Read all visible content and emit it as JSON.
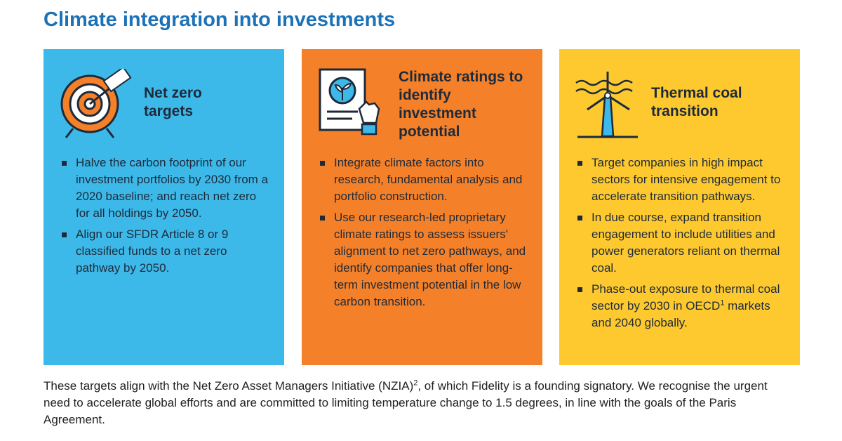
{
  "title": "Climate integration into investments",
  "cards": [
    {
      "title": "Net zero targets",
      "bullets": [
        "Halve the carbon footprint of our investment portfolios by 2030 from a 2020 baseline; and reach net zero for all holdings by 2050.",
        "Align our SFDR Article 8 or 9 classified funds to a net zero pathway by 2050."
      ]
    },
    {
      "title": "Climate ratings to identify investment potential",
      "bullets": [
        "Integrate climate factors into research, fundamental analysis and portfolio construction.",
        "Use our research-led proprietary climate ratings to assess issuers' alignment to net zero pathways, and identify companies that offer long-term investment potential in the low carbon transition."
      ]
    },
    {
      "title": "Thermal coal transition",
      "bullets": [
        "Target companies in high impact sectors for intensive engagement to accelerate transition pathways.",
        "In due course, expand transition engagement to include utilities and power generators reliant on thermal coal.",
        {
          "before": "Phase-out exposure to thermal coal sector by 2030 in OECD",
          "sup": "1",
          "after": " markets and 2040 globally."
        }
      ]
    }
  ],
  "footer": {
    "before": "These targets align with the Net Zero Asset Managers Initiative (NZIA)",
    "sup": "2",
    "after": ", of which Fidelity is a founding signatory. We recognise the urgent need to accelerate global efforts and are committed to limiting temperature change to 1.5 degrees, in line with the goals of the Paris Agreement."
  }
}
